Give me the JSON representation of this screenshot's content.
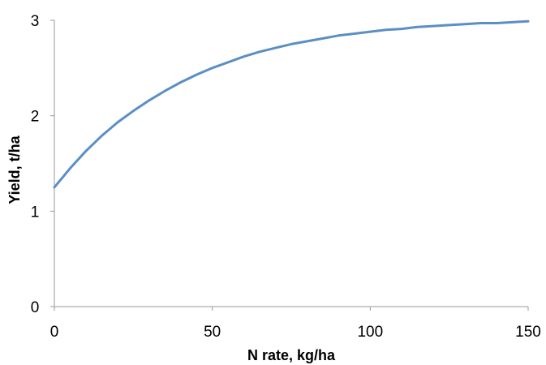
{
  "chart_data": {
    "type": "line",
    "title": "",
    "xlabel": "N rate, kg/ha",
    "ylabel": "Yield, t/ha",
    "xlim": [
      0,
      150
    ],
    "ylim": [
      0,
      3
    ],
    "x_ticks": [
      0,
      50,
      100,
      150
    ],
    "x_tick_labels": [
      "0",
      "50",
      "100",
      "150"
    ],
    "y_ticks": [
      0,
      1,
      2,
      3
    ],
    "y_tick_labels": [
      "0",
      "1",
      "2",
      "3"
    ],
    "grid": false,
    "legend": "none",
    "series": [
      {
        "color": "#5b8fc4",
        "x": [
          0,
          5,
          10,
          15,
          20,
          25,
          30,
          35,
          40,
          45,
          50,
          55,
          60,
          65,
          70,
          75,
          80,
          85,
          90,
          95,
          100,
          105,
          110,
          115,
          120,
          125,
          130,
          135,
          140,
          145,
          150
        ],
        "y": [
          1.25,
          1.45,
          1.63,
          1.79,
          1.93,
          2.05,
          2.16,
          2.26,
          2.35,
          2.43,
          2.5,
          2.56,
          2.62,
          2.67,
          2.71,
          2.75,
          2.78,
          2.81,
          2.84,
          2.86,
          2.88,
          2.9,
          2.91,
          2.93,
          2.94,
          2.95,
          2.96,
          2.97,
          2.97,
          2.98,
          2.99
        ]
      }
    ]
  }
}
